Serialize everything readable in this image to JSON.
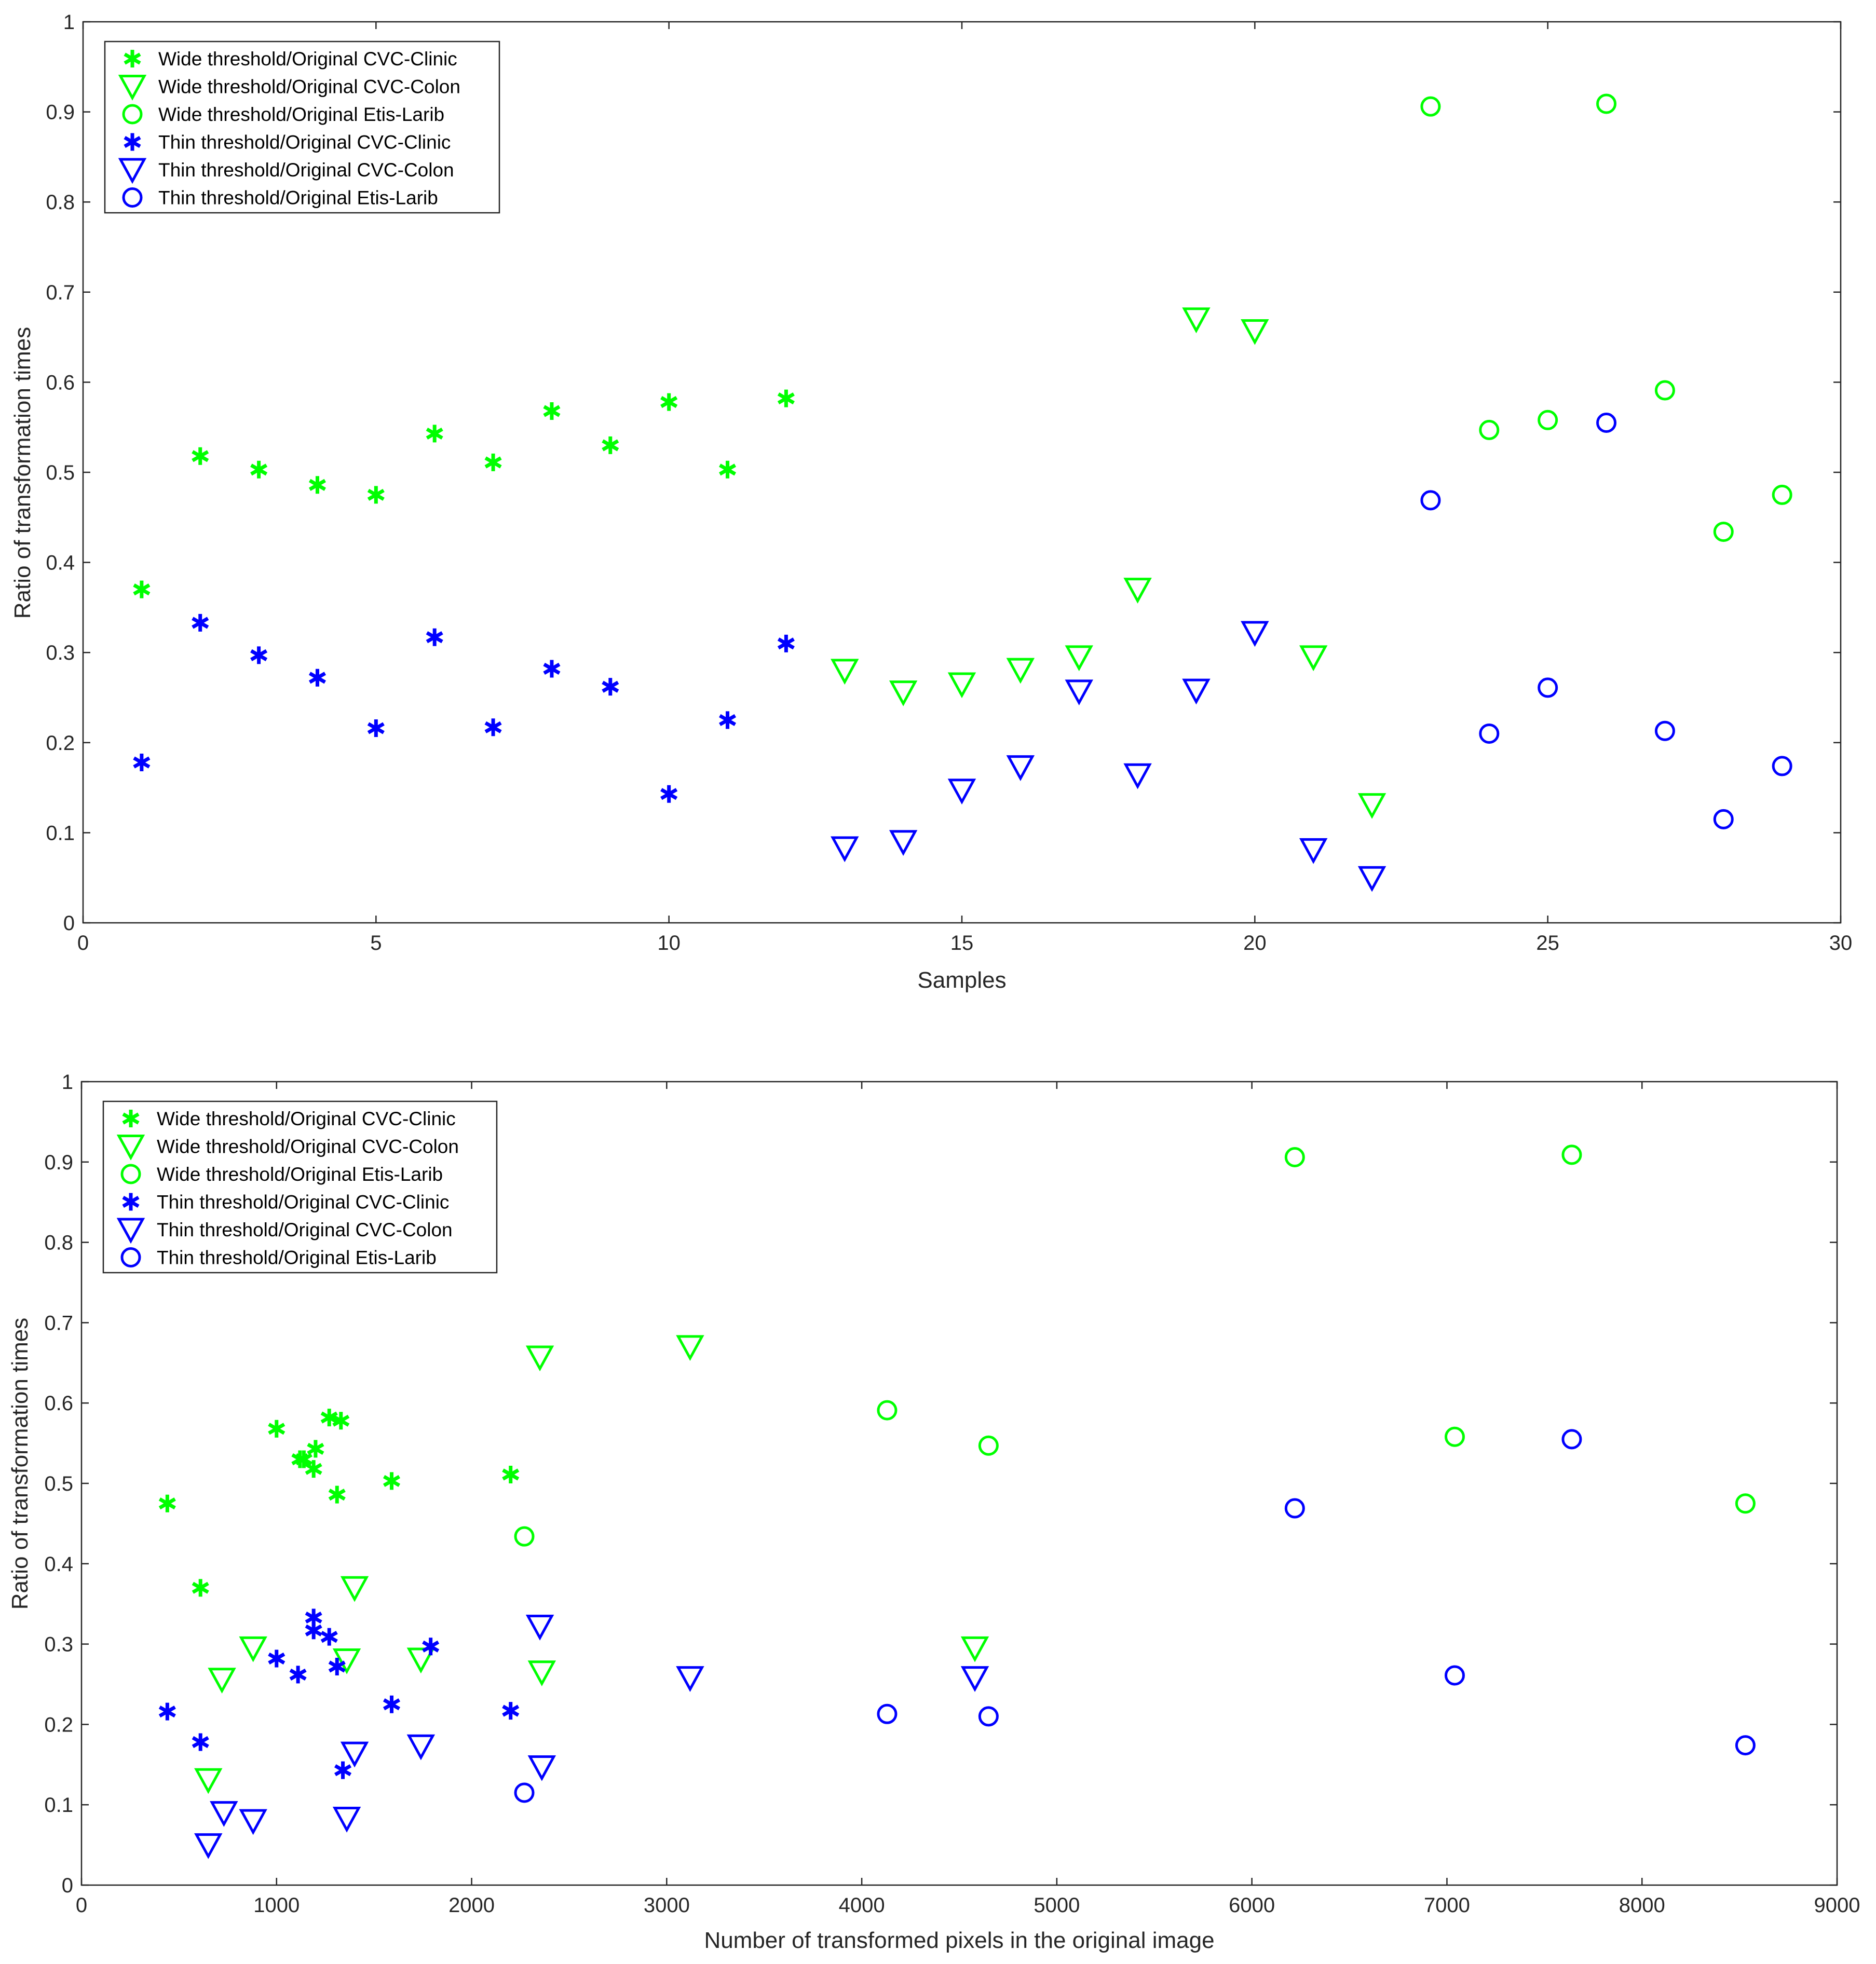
{
  "chart_data": [
    {
      "type": "scatter",
      "xlabel": "Samples",
      "ylabel": "Ratio of transformation times",
      "xlim": [
        0,
        30
      ],
      "ylim": [
        0,
        1
      ],
      "xticks": [
        0,
        5,
        10,
        15,
        20,
        25,
        30
      ],
      "yticks": [
        0,
        0.1,
        0.2,
        0.3,
        0.4,
        0.5,
        0.6,
        0.7,
        0.8,
        0.9,
        1
      ],
      "legend_position": "top-left",
      "series": [
        {
          "name": "Wide threshold/Original CVC-Clinic",
          "color": "#00ff00",
          "marker": "asterisk",
          "x": [
            1,
            2,
            3,
            4,
            5,
            6,
            7,
            8,
            9,
            10,
            11,
            12
          ],
          "y": [
            0.37,
            0.518,
            0.503,
            0.486,
            0.475,
            0.543,
            0.511,
            0.568,
            0.53,
            0.578,
            0.503,
            0.582
          ]
        },
        {
          "name": "Wide threshold/Original CVC-Colon",
          "color": "#00ff00",
          "marker": "triangle-down",
          "x": [
            13,
            14,
            15,
            16,
            17,
            18,
            19,
            20,
            21,
            22
          ],
          "y": [
            0.28,
            0.256,
            0.265,
            0.281,
            0.295,
            0.37,
            0.67,
            0.657,
            0.295,
            0.131
          ]
        },
        {
          "name": "Wide threshold/Original Etis-Larib",
          "color": "#00ff00",
          "marker": "circle",
          "x": [
            23,
            24,
            25,
            26,
            27,
            28,
            29
          ],
          "y": [
            0.906,
            0.547,
            0.558,
            0.909,
            0.591,
            0.434,
            0.475
          ]
        },
        {
          "name": "Thin threshold/Original CVC-Clinic",
          "color": "#0000ff",
          "marker": "asterisk",
          "x": [
            1,
            2,
            3,
            4,
            5,
            6,
            7,
            8,
            9,
            10,
            11,
            12
          ],
          "y": [
            0.178,
            0.333,
            0.297,
            0.272,
            0.216,
            0.317,
            0.217,
            0.282,
            0.262,
            0.143,
            0.225,
            0.31
          ]
        },
        {
          "name": "Thin threshold/Original CVC-Colon",
          "color": "#0000ff",
          "marker": "triangle-down",
          "x": [
            13,
            14,
            15,
            16,
            17,
            18,
            19,
            20,
            21,
            22
          ],
          "y": [
            0.083,
            0.09,
            0.147,
            0.173,
            0.257,
            0.164,
            0.258,
            0.322,
            0.081,
            0.05
          ]
        },
        {
          "name": "Thin threshold/Original Etis-Larib",
          "color": "#0000ff",
          "marker": "circle",
          "x": [
            23,
            24,
            25,
            26,
            27,
            28,
            29
          ],
          "y": [
            0.469,
            0.21,
            0.261,
            0.555,
            0.213,
            0.115,
            0.174
          ]
        }
      ]
    },
    {
      "type": "scatter",
      "xlabel": "Number of transformed pixels in the original image",
      "ylabel": "Ratio of transformation times",
      "xlim": [
        0,
        9000
      ],
      "ylim": [
        0,
        1
      ],
      "xticks": [
        0,
        1000,
        2000,
        3000,
        4000,
        5000,
        6000,
        7000,
        8000,
        9000
      ],
      "yticks": [
        0,
        0.1,
        0.2,
        0.3,
        0.4,
        0.5,
        0.6,
        0.7,
        0.8,
        0.9,
        1
      ],
      "legend_position": "top-left",
      "series": [
        {
          "name": "Wide threshold/Original CVC-Clinic",
          "color": "#00ff00",
          "marker": "asterisk",
          "x": [
            610,
            1190,
            1310,
            1200,
            440,
            1120,
            2200,
            1000,
            1140,
            1330,
            1590,
            1270
          ],
          "y": [
            0.37,
            0.518,
            0.486,
            0.543,
            0.475,
            0.53,
            0.511,
            0.568,
            0.53,
            0.578,
            0.503,
            0.582
          ]
        },
        {
          "name": "Wide threshold/Original CVC-Colon",
          "color": "#00ff00",
          "marker": "triangle-down",
          "x": [
            1360,
            720,
            2360,
            1740,
            880,
            1400,
            3120,
            2350,
            4580,
            650
          ],
          "y": [
            0.28,
            0.256,
            0.265,
            0.281,
            0.295,
            0.37,
            0.67,
            0.657,
            0.295,
            0.131
          ]
        },
        {
          "name": "Wide threshold/Original Etis-Larib",
          "color": "#00ff00",
          "marker": "circle",
          "x": [
            6220,
            4650,
            7040,
            7640,
            4130,
            2270,
            8530
          ],
          "y": [
            0.906,
            0.547,
            0.558,
            0.909,
            0.591,
            0.434,
            0.475
          ]
        },
        {
          "name": "Thin threshold/Original CVC-Clinic",
          "color": "#0000ff",
          "marker": "asterisk",
          "x": [
            610,
            1190,
            1790,
            1310,
            440,
            1190,
            1270,
            1000,
            1110,
            1340,
            1590,
            2200
          ],
          "y": [
            0.178,
            0.333,
            0.297,
            0.272,
            0.216,
            0.317,
            0.309,
            0.282,
            0.262,
            0.143,
            0.225,
            0.217
          ]
        },
        {
          "name": "Thin threshold/Original CVC-Colon",
          "color": "#0000ff",
          "marker": "triangle-down",
          "x": [
            1360,
            730,
            2360,
            1740,
            880,
            1400,
            3120,
            2350,
            4580,
            650
          ],
          "y": [
            0.083,
            0.09,
            0.147,
            0.173,
            0.08,
            0.164,
            0.258,
            0.322,
            0.258,
            0.05
          ]
        },
        {
          "name": "Thin threshold/Original Etis-Larib",
          "color": "#0000ff",
          "marker": "circle",
          "x": [
            6220,
            4650,
            7040,
            7640,
            4130,
            2270,
            8530
          ],
          "y": [
            0.469,
            0.21,
            0.261,
            0.555,
            0.213,
            0.115,
            0.174
          ]
        }
      ]
    }
  ]
}
